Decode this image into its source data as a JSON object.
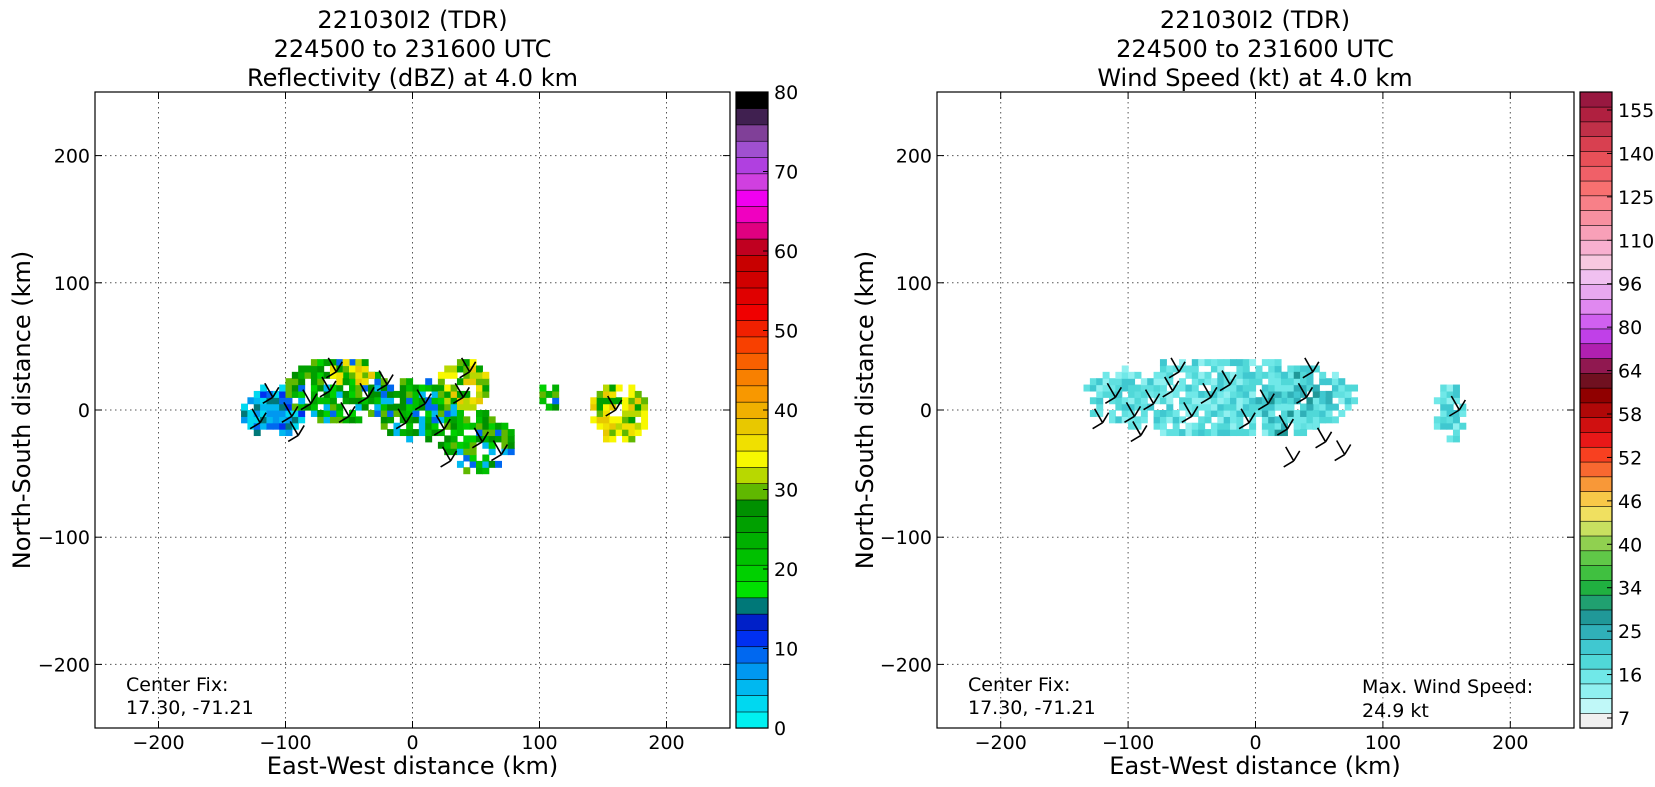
{
  "chart_data": [
    {
      "type": "heatmap",
      "title": [
        "221030I2 (TDR)",
        "224500 to 231600 UTC",
        "Reflectivity (dBZ) at 4.0 km"
      ],
      "xlabel": "East-West distance (km)",
      "ylabel": "North-South distance (km)",
      "xlim": [
        -250,
        250
      ],
      "ylim": [
        -250,
        250
      ],
      "xticks": [
        -200,
        -100,
        0,
        100,
        200
      ],
      "yticks": [
        -200,
        -100,
        0,
        100,
        200
      ],
      "xtick_labels": [
        "−200",
        "−100",
        "0",
        "100",
        "200"
      ],
      "ytick_labels": [
        "−200",
        "−100",
        "0",
        "100",
        "200"
      ],
      "grid": true,
      "annotation": {
        "line1": "Center Fix:",
        "line2": "17.30, -71.21"
      },
      "colorbar": {
        "min": 0,
        "max": 80,
        "ticks": [
          "0",
          "10",
          "20",
          "30",
          "40",
          "50",
          "60",
          "70",
          "80"
        ],
        "colors": [
          "#00f0f0",
          "#00d8f0",
          "#00b8f0",
          "#0098f0",
          "#0068f0",
          "#0030f0",
          "#0020c8",
          "#007878",
          "#00e000",
          "#00d000",
          "#00c000",
          "#00b000",
          "#00a000",
          "#009000",
          "#60b800",
          "#b8d800",
          "#f8f800",
          "#f0e000",
          "#e8c800",
          "#f0b000",
          "#f89800",
          "#f88000",
          "#f86000",
          "#f84000",
          "#f02000",
          "#f00000",
          "#e00000",
          "#d00000",
          "#c80000",
          "#c00020",
          "#e00080",
          "#f000c0",
          "#f000f0",
          "#d040e0",
          "#b040e0",
          "#a050d0",
          "#804098",
          "#402050",
          "#000000"
        ]
      },
      "echo_regions": [
        {
          "x": [
            -135,
            -85
          ],
          "y": [
            -20,
            20
          ],
          "level": "weak"
        },
        {
          "x": [
            -100,
            -20
          ],
          "y": [
            -10,
            40
          ],
          "level": "moderate"
        },
        {
          "x": [
            -70,
            -30
          ],
          "y": [
            20,
            40
          ],
          "level": "strong"
        },
        {
          "x": [
            -30,
            40
          ],
          "y": [
            -25,
            25
          ],
          "level": "moderate"
        },
        {
          "x": [
            20,
            60
          ],
          "y": [
            0,
            40
          ],
          "level": "strong"
        },
        {
          "x": [
            20,
            80
          ],
          "y": [
            -50,
            0
          ],
          "level": "moderate"
        },
        {
          "x": [
            100,
            115
          ],
          "y": [
            0,
            20
          ],
          "level": "moderate"
        },
        {
          "x": [
            140,
            185
          ],
          "y": [
            -25,
            20
          ],
          "level": "strong"
        }
      ]
    },
    {
      "type": "heatmap",
      "title": [
        "221030I2 (TDR)",
        "224500 to 231600 UTC",
        "Wind Speed (kt) at 4.0 km"
      ],
      "xlabel": "East-West distance (km)",
      "ylabel": "North-South distance (km)",
      "xlim": [
        -250,
        250
      ],
      "ylim": [
        -250,
        250
      ],
      "xticks": [
        -200,
        -100,
        0,
        100,
        200
      ],
      "yticks": [
        -200,
        -100,
        0,
        100,
        200
      ],
      "xtick_labels": [
        "−200",
        "−100",
        "0",
        "100",
        "200"
      ],
      "ytick_labels": [
        "−200",
        "−100",
        "0",
        "100",
        "200"
      ],
      "grid": true,
      "annotation": {
        "line1": "Center Fix:",
        "line2": "17.30, -71.21"
      },
      "max_wind": {
        "label": "Max. Wind Speed:",
        "value": "24.9 kt"
      },
      "colorbar": {
        "min": 0,
        "max": 160,
        "ticks": [
          "7",
          "16",
          "25",
          "34",
          "40",
          "46",
          "52",
          "58",
          "64",
          "80",
          "96",
          "110",
          "125",
          "140",
          "155"
        ],
        "colors": [
          "#f0f0f0",
          "#c0f8f8",
          "#90f0f0",
          "#70e8e8",
          "#50d8d8",
          "#40c8d0",
          "#30b0b8",
          "#209898",
          "#20a070",
          "#20b040",
          "#40c040",
          "#60c848",
          "#90d050",
          "#c8e060",
          "#f0e060",
          "#f8c848",
          "#f89838",
          "#f86830",
          "#f84020",
          "#e81818",
          "#d01010",
          "#b00808",
          "#900000",
          "#701020",
          "#901850",
          "#b020b0",
          "#c040e8",
          "#d060f0",
          "#e088f0",
          "#e8a8f0",
          "#f0c0f0",
          "#f8c8e0",
          "#f8b0d0",
          "#f8a0b8",
          "#f890a0",
          "#f88088",
          "#f87070",
          "#f06068",
          "#e85058",
          "#d84050",
          "#c03048",
          "#b02040",
          "#981840"
        ]
      },
      "echo_regions": [
        {
          "x": [
            -135,
            80
          ],
          "y": [
            -20,
            40
          ],
          "level": "weak"
        },
        {
          "x": [
            0,
            60
          ],
          "y": [
            -20,
            30
          ],
          "level": "moderate"
        },
        {
          "x": [
            140,
            165
          ],
          "y": [
            -25,
            20
          ],
          "level": "weak"
        }
      ]
    }
  ]
}
